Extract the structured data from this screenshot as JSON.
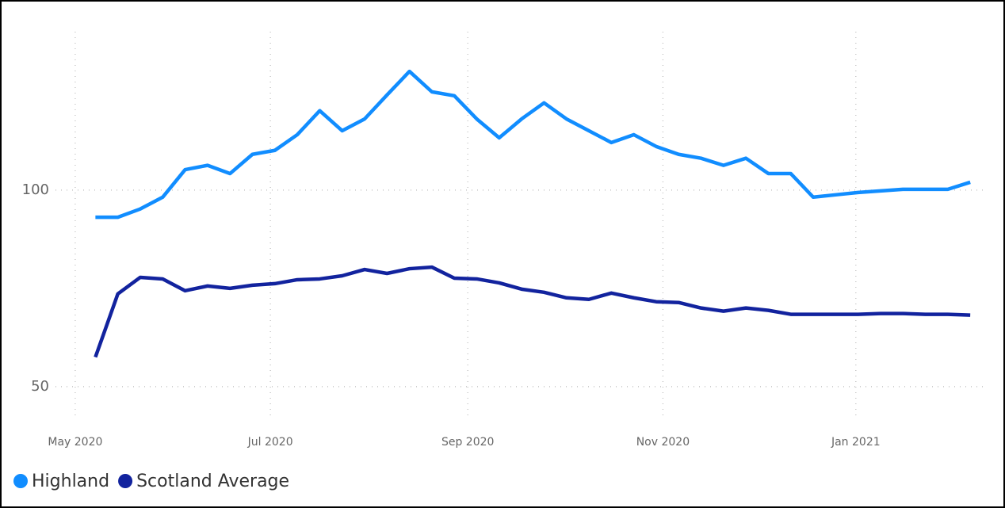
{
  "chart_data": {
    "type": "line",
    "x": [
      0.9,
      1.9,
      2.9,
      3.9,
      4.9,
      5.9,
      6.9,
      7.9,
      8.9,
      9.9,
      10.9,
      11.9,
      12.9,
      13.9,
      14.9,
      15.9,
      16.9,
      17.9,
      18.9,
      19.9,
      20.9,
      21.9,
      22.9,
      23.9,
      24.9,
      25.9,
      26.9,
      27.9,
      28.9,
      29.9,
      30.9,
      31.9,
      32.9,
      33.9,
      34.9,
      35.9,
      36.9,
      37.9,
      38.9,
      39.9
    ],
    "series": [
      {
        "name": "Highland",
        "color": "#118dff",
        "values": [
          93.1,
          93.1,
          95.2,
          98.2,
          105.2,
          106.3,
          104.2,
          109.1,
          110.1,
          114.1,
          120.2,
          115.1,
          118.1,
          124.2,
          130.2,
          125,
          124,
          118.1,
          113.3,
          118.1,
          122.2,
          118.1,
          115.1,
          112.1,
          114.1,
          111.1,
          109.1,
          108.1,
          106.3,
          108.1,
          104.2,
          104.2,
          98.2,
          98.8,
          99.4,
          99.8,
          100.2,
          100.2,
          100.2,
          102
        ]
      },
      {
        "name": "Scotland Average",
        "color": "#12239e",
        "values": [
          57.5,
          73.6,
          77.8,
          77.4,
          74.4,
          75.6,
          75,
          75.8,
          76.2,
          77.2,
          77.4,
          78.2,
          79.8,
          78.8,
          80,
          80.4,
          77.6,
          77.4,
          76.4,
          74.8,
          74,
          72.6,
          72.2,
          73.8,
          72.6,
          71.6,
          71.4,
          70,
          69.2,
          70,
          69.4,
          68.4,
          68.4,
          68.4,
          68.4,
          68.6,
          68.6,
          68.4,
          68.4,
          68.2
        ]
      }
    ],
    "xlim": [
      -0.88,
      40.46
    ],
    "xticks": [
      {
        "value": 0,
        "label": "May 2020"
      },
      {
        "value": 8.7,
        "label": "Jul 2020"
      },
      {
        "value": 17.5,
        "label": "Sep 2020"
      },
      {
        "value": 26.2,
        "label": "Nov 2020"
      },
      {
        "value": 34.8,
        "label": "Jan 2021"
      }
    ],
    "ylim": [
      41.5,
      140.3
    ],
    "yticks": [
      50,
      100
    ],
    "grid": true
  }
}
